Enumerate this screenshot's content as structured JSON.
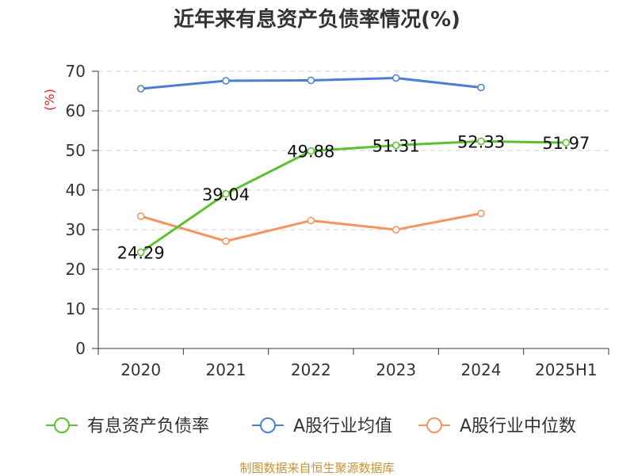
{
  "chart_data": {
    "type": "line",
    "title": "近年来有息资产负债率情况(%)",
    "ylabel": "(%)",
    "xlabel": "",
    "categories": [
      "2020",
      "2021",
      "2022",
      "2023",
      "2024",
      "2025H1"
    ],
    "ylim": [
      0,
      70
    ],
    "yticks": [
      "0",
      "10",
      "20",
      "30",
      "40",
      "50",
      "60",
      "70"
    ],
    "grid": true,
    "legend_position": "bottom",
    "series": [
      {
        "name": "有息资产负债率",
        "color": "#5cc12e",
        "values": [
          24.29,
          39.04,
          49.88,
          51.31,
          52.33,
          51.97
        ],
        "labels": [
          "24.29",
          "39.04",
          "49.88",
          "51.31",
          "52.33",
          "51.97"
        ]
      },
      {
        "name": "A股行业均值",
        "color": "#4a7fd6",
        "values": [
          65.6,
          67.6,
          67.7,
          68.3,
          65.9,
          null
        ]
      },
      {
        "name": "A股行业中位数",
        "color": "#f4945e",
        "values": [
          33.4,
          27.1,
          32.3,
          30.0,
          34.1,
          null
        ]
      }
    ]
  },
  "footer": {
    "source": "制图数据来自恒生聚源数据库"
  }
}
